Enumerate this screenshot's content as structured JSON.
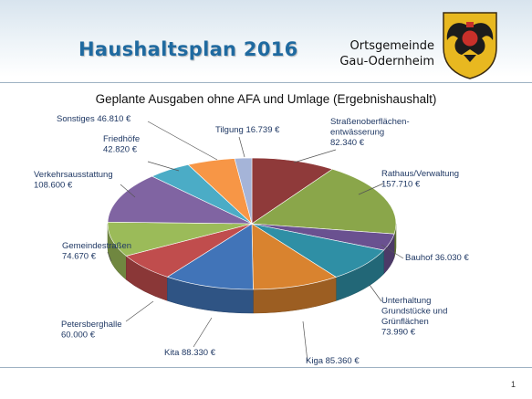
{
  "slide": {
    "title": "Haushaltsplan 2016",
    "municipality_line1": "Ortsgemeinde",
    "municipality_line2": "Gau-Odernheim",
    "page_number": "1"
  },
  "chart_data": {
    "type": "pie",
    "title": "Geplante Ausgaben ohne AFA und Umlage (Ergebnishaushalt)",
    "unit": "€",
    "slices": [
      {
        "label": "Straßenoberflächenentwässerung",
        "label_lines": [
          "Straßenoberflächen-",
          "entwässerung",
          "82.340 €"
        ],
        "value": 82340,
        "color": "#8f3a3a"
      },
      {
        "label": "Rathaus/Verwaltung",
        "label_lines": [
          "Rathaus/Verwaltung",
          "157.710 €"
        ],
        "value": 157710,
        "color": "#8aa64a"
      },
      {
        "label": "Bauhof",
        "label_lines": [
          "Bauhof 36.030 €"
        ],
        "value": 36030,
        "color": "#6a5190"
      },
      {
        "label": "Unterhaltung Grundstücke und Grünflächen",
        "label_lines": [
          "Unterhaltung",
          "Grundstücke und",
          "Grünflächen",
          "73.990 €"
        ],
        "value": 73990,
        "color": "#2f8fa5"
      },
      {
        "label": "Kiga",
        "label_lines": [
          "Kiga 85.360 €"
        ],
        "value": 85360,
        "color": "#d9832f"
      },
      {
        "label": "Kita",
        "label_lines": [
          "Kita 88.330 €"
        ],
        "value": 88330,
        "color": "#4174b8"
      },
      {
        "label": "Petersberghalle",
        "label_lines": [
          "Petersberghalle",
          "60.000 €"
        ],
        "value": 60000,
        "color": "#c04d4d"
      },
      {
        "label": "Gemeindestraßen",
        "label_lines": [
          "Gemeindestraßen",
          "74.670 €"
        ],
        "value": 74670,
        "color": "#9bbb59"
      },
      {
        "label": "Verkehrsausstattung",
        "label_lines": [
          "Verkehrsausstattung",
          "108.600 €"
        ],
        "value": 108600,
        "color": "#8064a2"
      },
      {
        "label": "Friedhöfe",
        "label_lines": [
          "Friedhöfe",
          "42.820 €"
        ],
        "value": 42820,
        "color": "#4bacc6"
      },
      {
        "label": "Sonstiges",
        "label_lines": [
          "Sonstiges 46.810 €"
        ],
        "value": 46810,
        "color": "#f79646"
      },
      {
        "label": "Tilgung",
        "label_lines": [
          "Tilgung 16.739 €"
        ],
        "value": 16739,
        "color": "#a5b4d8"
      }
    ],
    "style": "3d-pie"
  }
}
